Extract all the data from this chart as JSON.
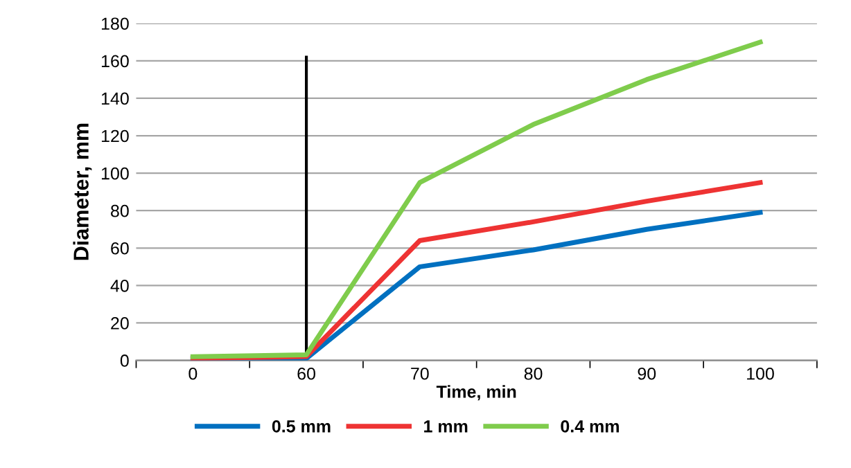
{
  "chart_data": {
    "type": "line",
    "xlabel": "Time, min",
    "ylabel": "Diameter, mm",
    "categories": [
      "0",
      "60",
      "70",
      "80",
      "90",
      "100"
    ],
    "series": [
      {
        "name": "0.5 mm",
        "color": "#0070c0",
        "values": [
          1,
          1,
          50,
          59,
          70,
          79
        ]
      },
      {
        "name": "1 mm",
        "color": "#ee3333",
        "values": [
          1,
          2,
          64,
          74,
          85,
          95
        ]
      },
      {
        "name": "0.4 mm",
        "color": "#7fcc4c",
        "values": [
          2,
          3,
          95,
          126,
          150,
          170
        ]
      },
      {
        "color": "#000000",
        "x": [
          "60",
          "60"
        ],
        "values": [
          0,
          162
        ]
      }
    ],
    "ylim": [
      0,
      180
    ],
    "yticks": [
      0,
      20,
      40,
      60,
      80,
      100,
      120,
      140,
      160,
      180
    ],
    "grid": "y",
    "legend": "bottom",
    "marker": "none",
    "line_style": "solid"
  }
}
